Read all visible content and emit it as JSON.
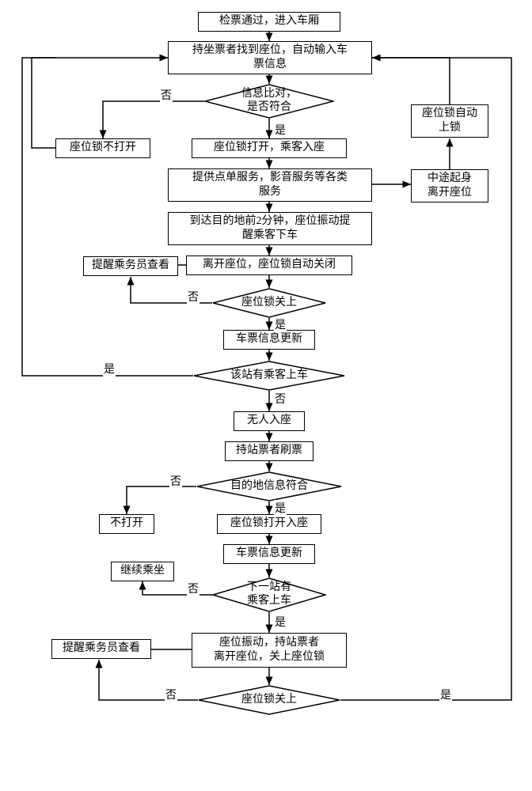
{
  "nodes": {
    "n1": "检票通过，进入车厢",
    "n2": "持坐票者找到座位，自动输入车\n票信息",
    "d1": "信息比对，\n是否符合",
    "n3": "座位锁不打开",
    "n4": "座位锁打开，乘客入座",
    "n5": "提供点单服务，影音服务等各类\n服务",
    "n_mid_leave": "中途起身\n离开座位",
    "n_autolock": "座位锁自动\n上锁",
    "n6": "到达目的地前2分钟，座位振动提\n醒乘客下车",
    "n7": "离开座位，座位锁自动关闭",
    "n_crew1": "提醒乘务员查看",
    "d2": "座位锁关上",
    "n8": "车票信息更新",
    "d3": "该站有乘客上车",
    "n9": "无人入座",
    "n10": "持站票者刷票",
    "d4": "目的地信息符合",
    "n11": "不打开",
    "n12": "座位锁打开入座",
    "n13": "车票信息更新",
    "n_cont": "继续乘坐",
    "d5": "下一站有\n乘客上车",
    "n14": "座位振动，持站票者\n离开座位，关上座位锁",
    "n_crew2": "提醒乘务员查看",
    "d6": "座位锁关上"
  },
  "labels": {
    "yes": "是",
    "no": "否"
  },
  "style": {
    "stroke": "#000000",
    "stroke_width": 1.5,
    "background": "#ffffff",
    "font_size": 14
  }
}
